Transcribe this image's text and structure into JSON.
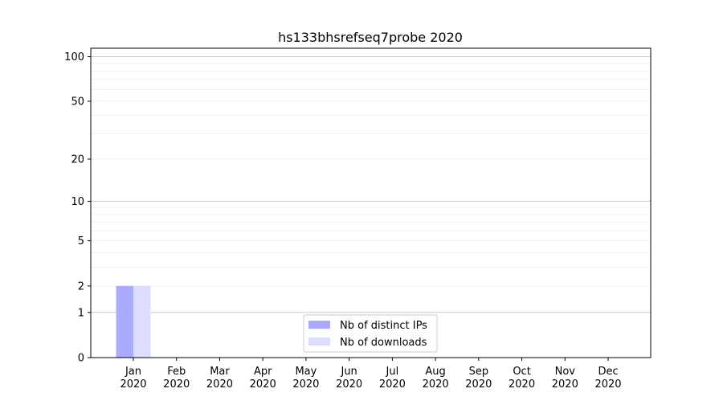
{
  "chart_data": {
    "type": "bar",
    "title": "hs133bhsrefseq7probe 2020",
    "xlabel": "",
    "ylabel": "",
    "y_scale": "log(1+y)",
    "ylim": [
      0,
      114
    ],
    "y_ticks": [
      0,
      1,
      2,
      5,
      10,
      20,
      50,
      100
    ],
    "y_tick_labels": [
      "0",
      "1",
      "2",
      "5",
      "10",
      "20",
      "50",
      "100"
    ],
    "grid": true,
    "categories": [
      "Jan\n2020",
      "Feb\n2020",
      "Mar\n2020",
      "Apr\n2020",
      "May\n2020",
      "Jun\n2020",
      "Jul\n2020",
      "Aug\n2020",
      "Sep\n2020",
      "Oct\n2020",
      "Nov\n2020",
      "Dec\n2020"
    ],
    "tick_month": [
      "Jan",
      "Feb",
      "Mar",
      "Apr",
      "May",
      "Jun",
      "Jul",
      "Aug",
      "Sep",
      "Oct",
      "Nov",
      "Dec"
    ],
    "tick_year": "2020",
    "series": [
      {
        "name": "Nb of distinct IPs",
        "color": "#aaaaff",
        "values": [
          2,
          0,
          0,
          0,
          0,
          0,
          0,
          0,
          0,
          0,
          0,
          0
        ]
      },
      {
        "name": "Nb of downloads",
        "color": "#ddddff",
        "values": [
          2,
          0,
          0,
          0,
          0,
          0,
          0,
          0,
          0,
          0,
          0,
          0
        ]
      }
    ],
    "legend_placement": "lower-center"
  }
}
